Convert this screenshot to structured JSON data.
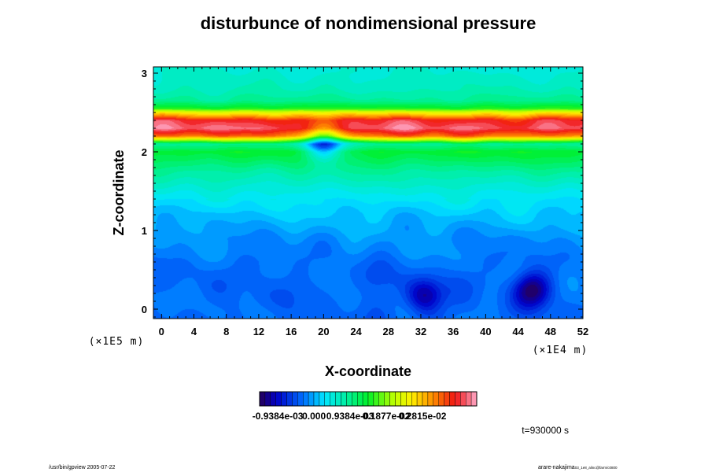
{
  "chart_data": {
    "type": "heatmap",
    "title": "disturbunce of nondimensional pressure",
    "xlabel": "X-coordinate",
    "ylabel": "Z-coordinate",
    "x_ticks": [
      "0",
      "4",
      "8",
      "12",
      "16",
      "20",
      "24",
      "28",
      "32",
      "36",
      "40",
      "44",
      "48",
      "52"
    ],
    "y_ticks": [
      "0",
      "1",
      "2",
      "3"
    ],
    "xlim": [
      -1,
      52
    ],
    "ylim": [
      -0.12,
      3.08
    ],
    "x_exponent_label": "(×1E4 m)",
    "y_exponent_label": "(×1E5 m)",
    "colorbar": {
      "min": -0.00141,
      "max": 0.00422,
      "levels": 40,
      "tick_labels": [
        "-0.9384e-03",
        "0.000",
        "0.9384e-03",
        "0.1877e-02",
        "0.2815e-02"
      ]
    },
    "field_profile": {
      "z": [
        -0.12,
        0.3,
        0.6,
        0.9,
        1.2,
        1.5,
        1.75,
        1.9,
        2.0,
        2.05,
        2.1,
        2.2,
        2.3,
        2.4,
        2.5,
        2.55,
        2.65,
        2.8,
        3.0,
        3.08
      ],
      "value": [
        -0.00032,
        -0.00029,
        -0.00022,
        -0.00012,
        0.00012,
        0.00045,
        0.00085,
        0.00118,
        0.00138,
        0.0011,
        0.0009,
        0.0032,
        0.00395,
        0.0037,
        0.0024,
        0.0015,
        0.0009,
        0.00068,
        0.00056,
        0.00052
      ]
    },
    "local_minima": [
      {
        "x": 32.5,
        "z": 0.17,
        "value": -0.00122
      },
      {
        "x": 45.7,
        "z": 0.24,
        "value": -0.00136
      },
      {
        "x": 26.5,
        "z": 0.42,
        "value": -0.00048
      },
      {
        "x": 13.0,
        "z": 0.6,
        "value": -0.00042
      },
      {
        "x": 15.5,
        "z": 0.2,
        "value": -0.0004
      },
      {
        "x": 3.0,
        "z": 0.45,
        "value": -0.00035
      },
      {
        "x": 37.0,
        "z": 0.35,
        "value": -0.00035
      },
      {
        "x": 42.0,
        "z": 0.65,
        "value": -0.00035
      },
      {
        "x": 20.0,
        "z": 2.12,
        "value": -0.0004
      }
    ],
    "time_label": "t=930000 s"
  },
  "footer": {
    "left": "/usr/bin/gpview 2005-07-22",
    "right": "arare-nakajima",
    "right_small": "03_1e8_alinc@farm/c0800"
  }
}
